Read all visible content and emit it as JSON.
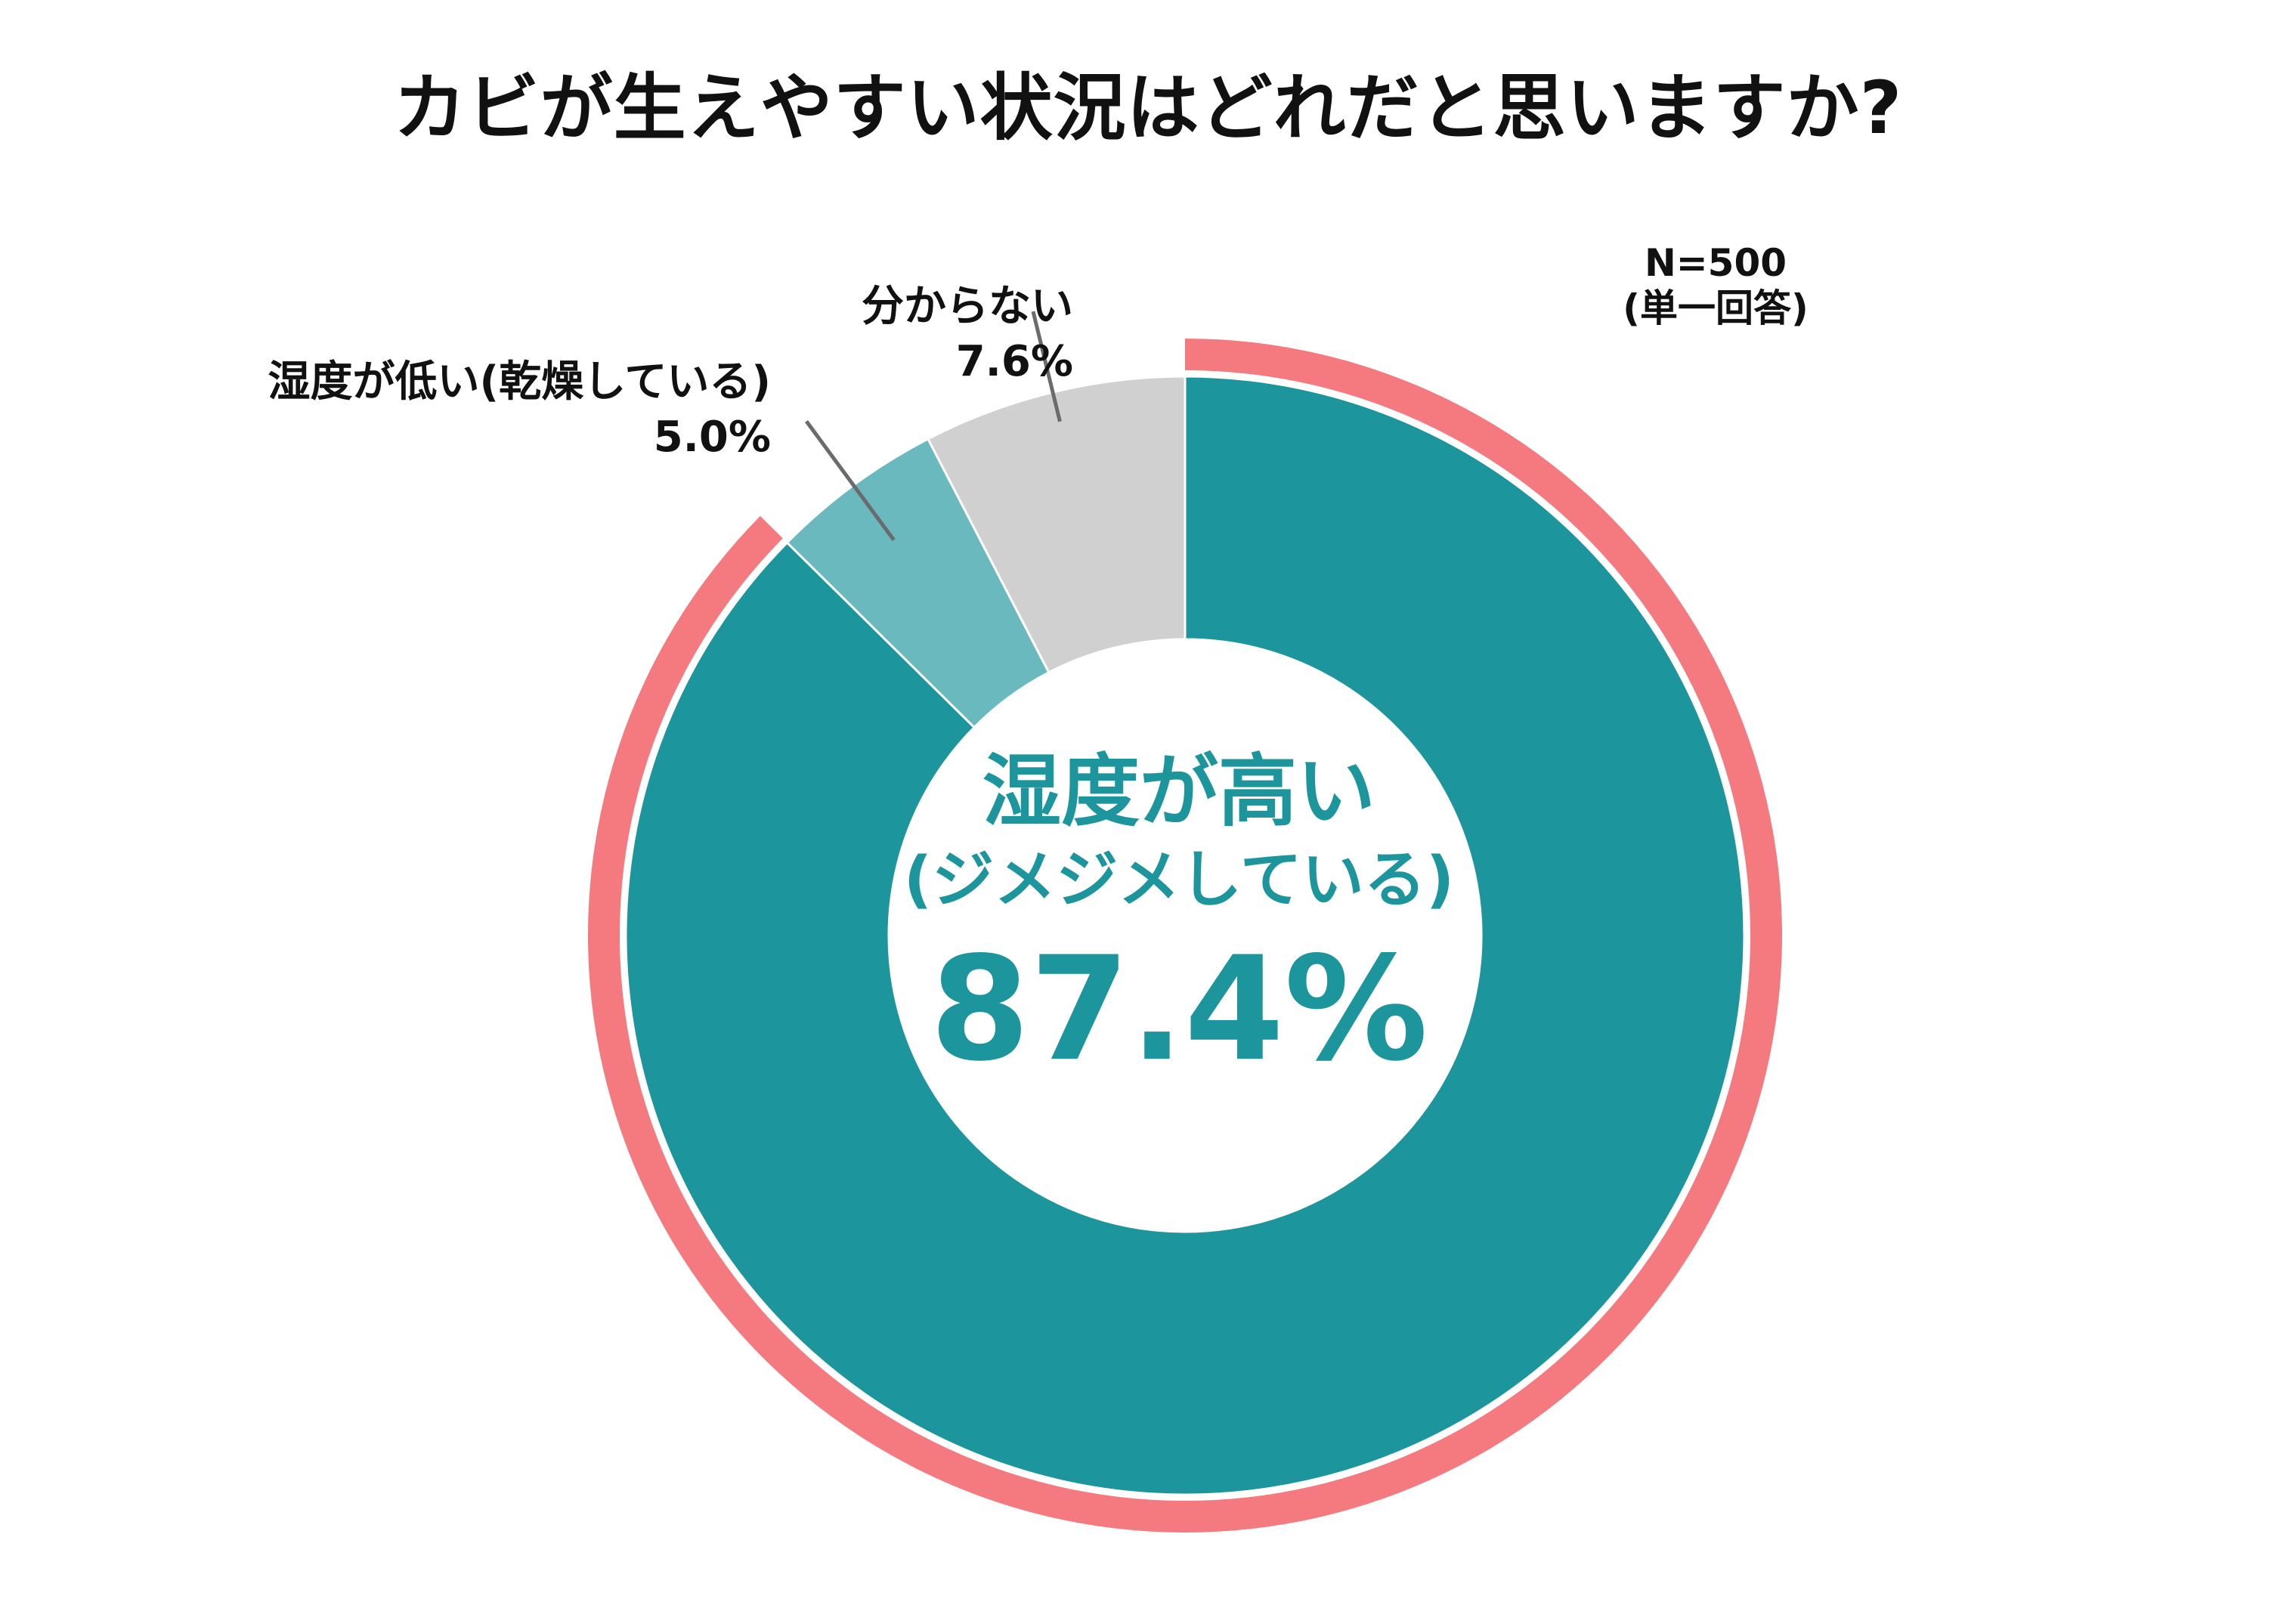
{
  "title": "カビが生えやすい状況はどれだと思いますか?",
  "note": {
    "line1": "N=500",
    "line2": "(単一回答)"
  },
  "colors": {
    "main": "#1c959c",
    "dry": "#6ab9bf",
    "unknown": "#d1d0d1",
    "highlight": "#f57a80",
    "leader": "#6b6b6b"
  },
  "chart_data": {
    "type": "pie",
    "variant": "donut",
    "categories": [
      "湿度が高い(ジメジメしている)",
      "湿度が低い(乾燥している)",
      "分からない"
    ],
    "values": [
      87.4,
      5.0,
      7.6
    ],
    "unit": "%",
    "sample": "N=500",
    "highlighted_category": "湿度が高い(ジメジメしている)"
  },
  "labels": {
    "high": {
      "name": "湿度が高い",
      "sub": "(ジメジメしている)",
      "value": "87.4%"
    },
    "dry": {
      "name": "湿度が低い(乾燥している)",
      "value": "5.0%"
    },
    "unknown": {
      "name": "分からない",
      "value": "7.6%"
    }
  }
}
